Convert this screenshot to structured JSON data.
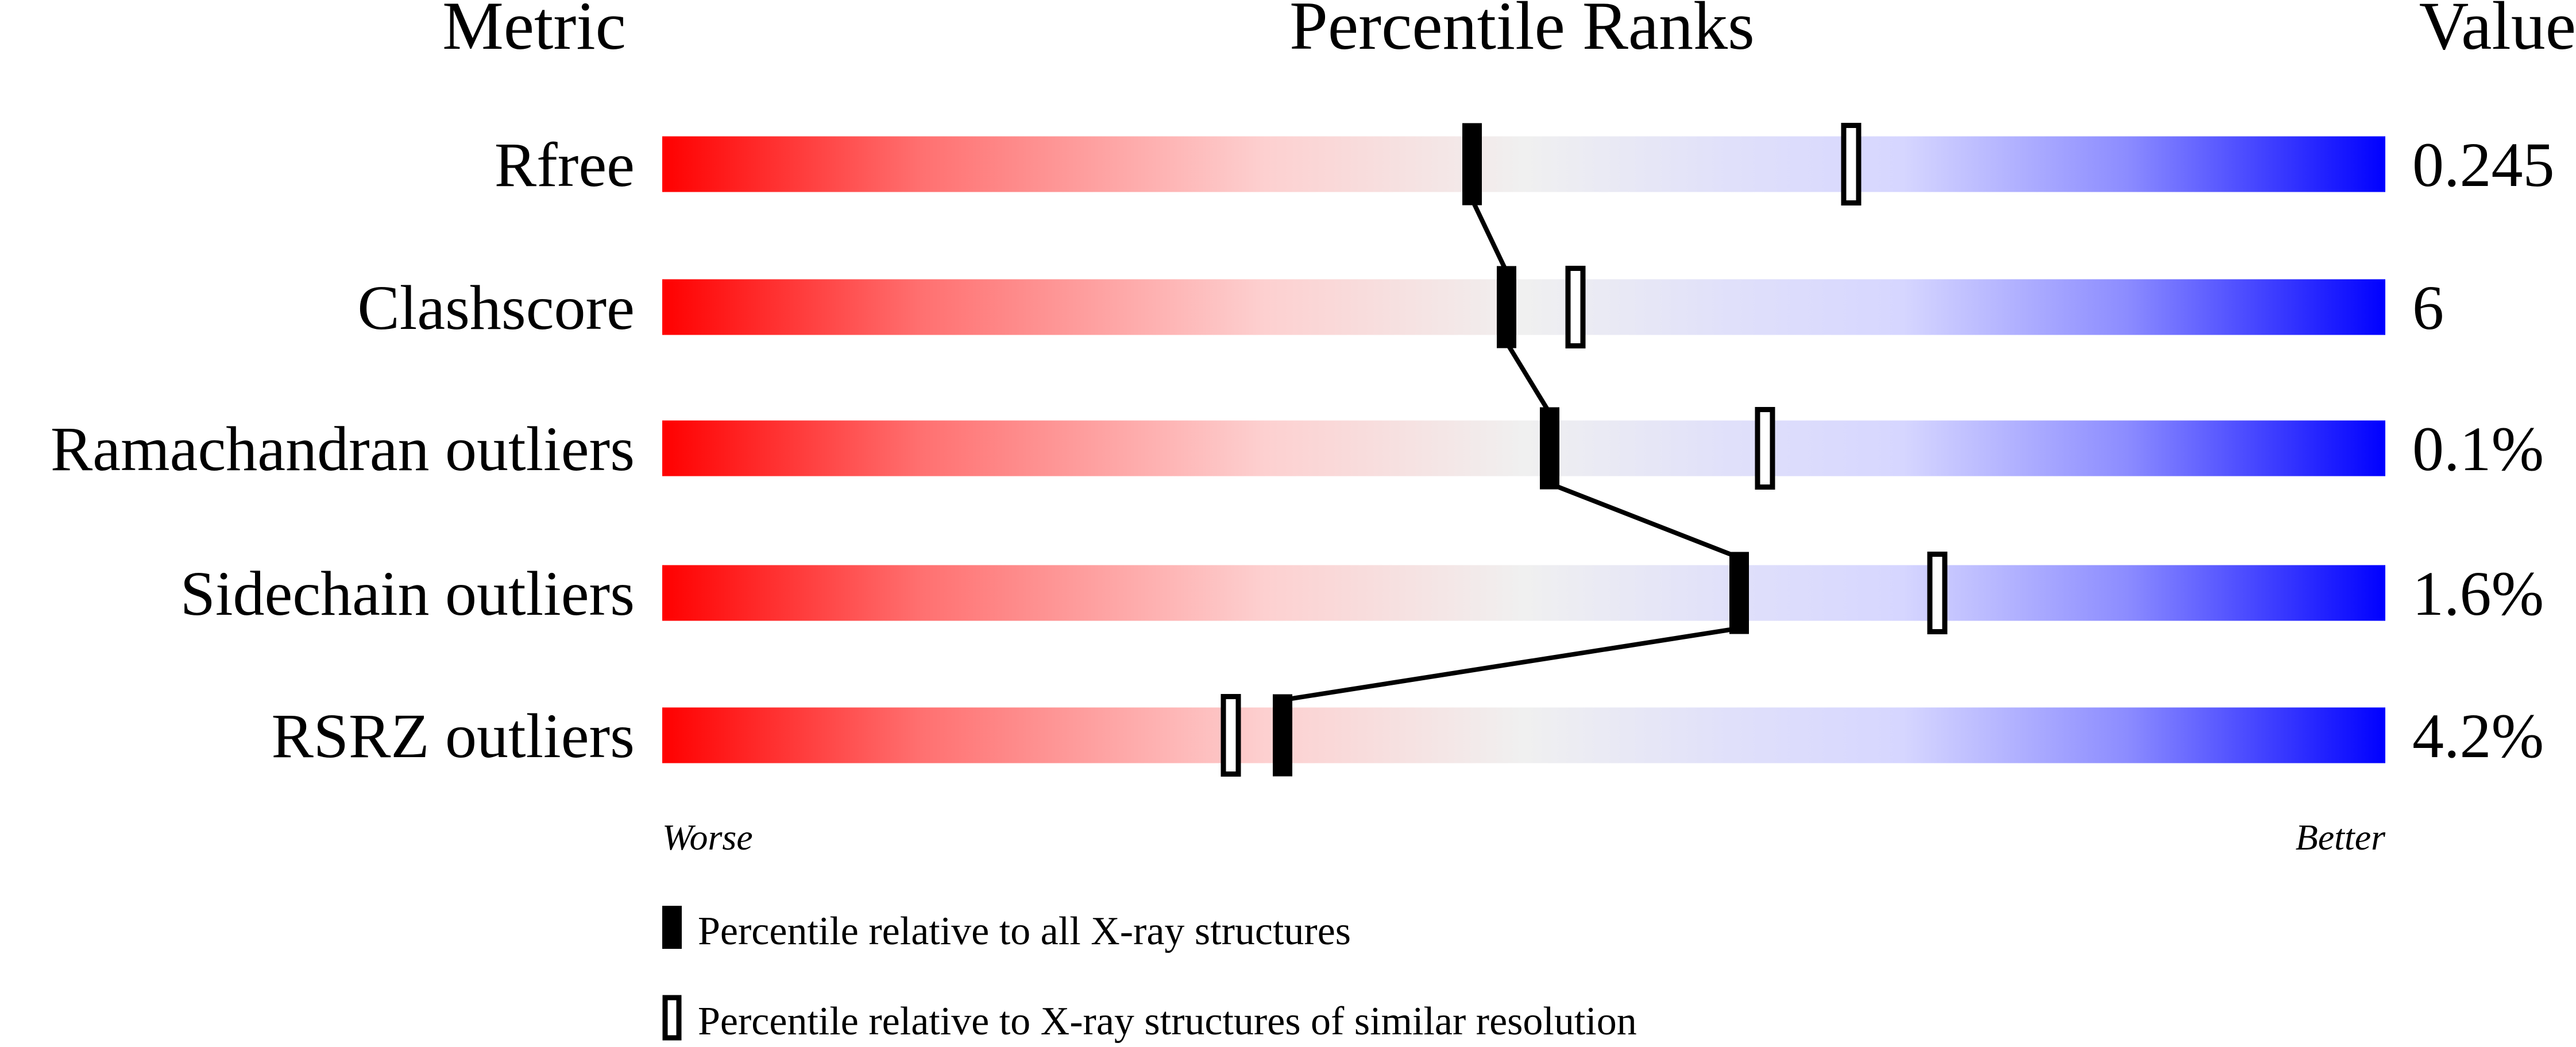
{
  "chart_data": {
    "type": "percentile-slider",
    "headers": {
      "metric": "Metric",
      "ranks": "Percentile Ranks",
      "value": "Value"
    },
    "xlim": [
      0,
      100
    ],
    "axis_labels": {
      "left": "Worse",
      "right": "Better"
    },
    "rows": [
      {
        "metric": "Rfree",
        "value": "0.245",
        "percentile_all": 47,
        "percentile_similar": 69
      },
      {
        "metric": "Clashscore",
        "value": "6",
        "percentile_all": 49,
        "percentile_similar": 53
      },
      {
        "metric": "Ramachandran outliers",
        "value": "0.1%",
        "percentile_all": 51.5,
        "percentile_similar": 64
      },
      {
        "metric": "Sidechain outliers",
        "value": "1.6%",
        "percentile_all": 62.5,
        "percentile_similar": 74
      },
      {
        "metric": "RSRZ outliers",
        "value": "4.2%",
        "percentile_all": 36,
        "percentile_similar": 33
      }
    ],
    "legend": {
      "all": "Percentile relative to all X-ray structures",
      "similar": "Percentile relative to X-ray structures of similar resolution"
    },
    "colors": {
      "worse": "#ff0000",
      "middle": "#f0f0f0",
      "better": "#0000ff",
      "marker": "#000000"
    }
  }
}
